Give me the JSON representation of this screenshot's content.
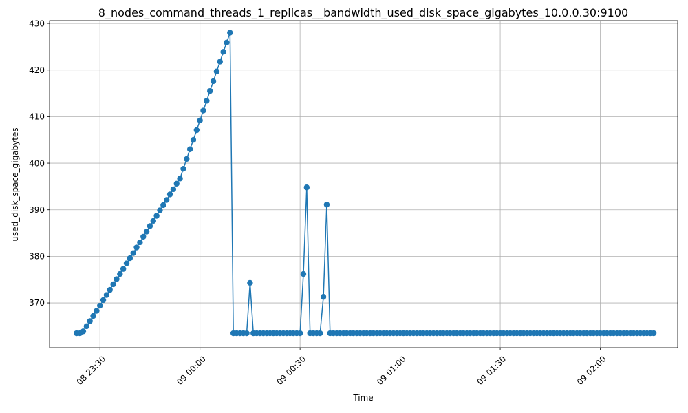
{
  "chart_data": {
    "type": "line",
    "title": "8_nodes_command_threads_1_replicas__bandwidth_used_disk_space_gigabytes_10.0.0.30:9100",
    "xlabel": "Time",
    "ylabel": "used_disk_space_gigabytes",
    "x_unit": "minutes after 08 23:30",
    "xlim": [
      -15.1,
      173.2
    ],
    "ylim": [
      360.4,
      430.6
    ],
    "grid": true,
    "color": "#1f77b4",
    "x_ticks": [
      {
        "value": 0,
        "label": "08 23:30"
      },
      {
        "value": 30,
        "label": "09 00:00"
      },
      {
        "value": 60,
        "label": "09 00:30"
      },
      {
        "value": 90,
        "label": "09 01:00"
      },
      {
        "value": 120,
        "label": "09 01:30"
      },
      {
        "value": 150,
        "label": "09 02:00"
      }
    ],
    "y_ticks": [
      {
        "value": 370,
        "label": "370"
      },
      {
        "value": 380,
        "label": "380"
      },
      {
        "value": 390,
        "label": "390"
      },
      {
        "value": 400,
        "label": "400"
      },
      {
        "value": 410,
        "label": "410"
      },
      {
        "value": 420,
        "label": "420"
      },
      {
        "value": 430,
        "label": "430"
      }
    ],
    "x_start": -7,
    "x_step": 1,
    "values": [
      363.5,
      363.5,
      363.9,
      365.0,
      366.1,
      367.2,
      368.3,
      369.4,
      370.6,
      371.7,
      372.8,
      374.0,
      375.1,
      376.2,
      377.3,
      378.5,
      379.6,
      380.7,
      381.9,
      383.0,
      384.2,
      385.3,
      386.5,
      387.6,
      388.7,
      389.9,
      391.0,
      392.1,
      393.3,
      394.4,
      395.6,
      396.7,
      398.8,
      400.9,
      403.0,
      405.0,
      407.1,
      409.2,
      411.3,
      413.4,
      415.5,
      417.6,
      419.7,
      421.8,
      423.9,
      425.9,
      428.0,
      363.5,
      363.5,
      363.5,
      363.5,
      363.5,
      374.3,
      363.5,
      363.5,
      363.5,
      363.5,
      363.5,
      363.5,
      363.5,
      363.5,
      363.5,
      363.5,
      363.5,
      363.5,
      363.5,
      363.5,
      363.5,
      376.2,
      394.8,
      363.5,
      363.5,
      363.5,
      363.5,
      371.3,
      391.1,
      363.5,
      363.5,
      363.5,
      363.5,
      363.5,
      363.5,
      363.5,
      363.5,
      363.5,
      363.5,
      363.5,
      363.5,
      363.5,
      363.5,
      363.5,
      363.5,
      363.5,
      363.5,
      363.5,
      363.5,
      363.5,
      363.5,
      363.5,
      363.5,
      363.5,
      363.5,
      363.5,
      363.5,
      363.5,
      363.5,
      363.5,
      363.5,
      363.5,
      363.5,
      363.5,
      363.5,
      363.5,
      363.5,
      363.5,
      363.5,
      363.5,
      363.5,
      363.5,
      363.5,
      363.5,
      363.5,
      363.5,
      363.5,
      363.5,
      363.5,
      363.5,
      363.5,
      363.5,
      363.5,
      363.5,
      363.5,
      363.5,
      363.5,
      363.5,
      363.5,
      363.5,
      363.5,
      363.5,
      363.5,
      363.5,
      363.5,
      363.5,
      363.5,
      363.5,
      363.5,
      363.5,
      363.5,
      363.5,
      363.5,
      363.5,
      363.5,
      363.5,
      363.5,
      363.5,
      363.5,
      363.5,
      363.5,
      363.5,
      363.5,
      363.5,
      363.5,
      363.5,
      363.5,
      363.5,
      363.5,
      363.5,
      363.5,
      363.5,
      363.5,
      363.5,
      363.5,
      363.5,
      363.5
    ]
  }
}
